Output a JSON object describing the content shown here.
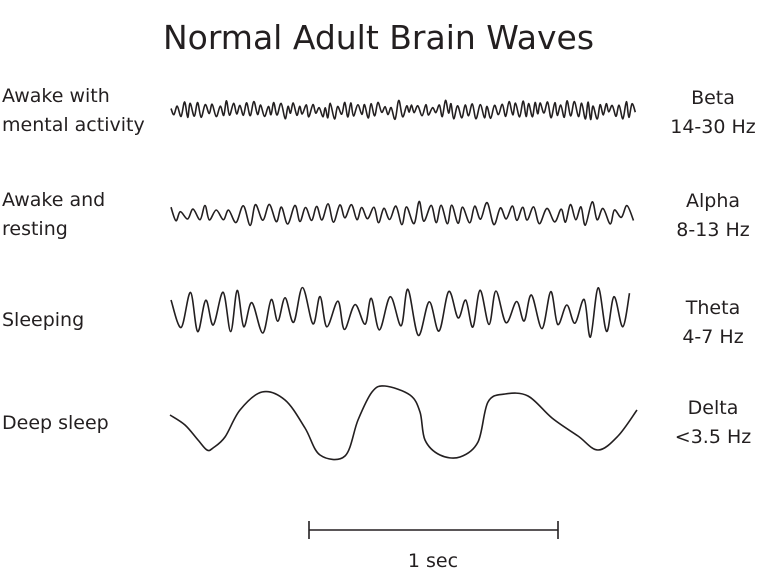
{
  "title": "Normal Adult Brain Waves",
  "rows": [
    {
      "state_lines": [
        "Awake with",
        "mental activity"
      ],
      "wave": "Beta",
      "frequency": "14-30 Hz"
    },
    {
      "state_lines": [
        "Awake and",
        "resting"
      ],
      "wave": "Alpha",
      "frequency": "8-13 Hz"
    },
    {
      "state_lines": [
        "Sleeping"
      ],
      "wave": "Theta",
      "frequency": "4-7 Hz"
    },
    {
      "state_lines": [
        "Deep sleep"
      ],
      "wave": "Delta",
      "frequency": "<3.5 Hz"
    }
  ],
  "scale_bar": {
    "label": "1 sec"
  },
  "colors": {
    "line": "#231f20",
    "background": "#ffffff"
  }
}
